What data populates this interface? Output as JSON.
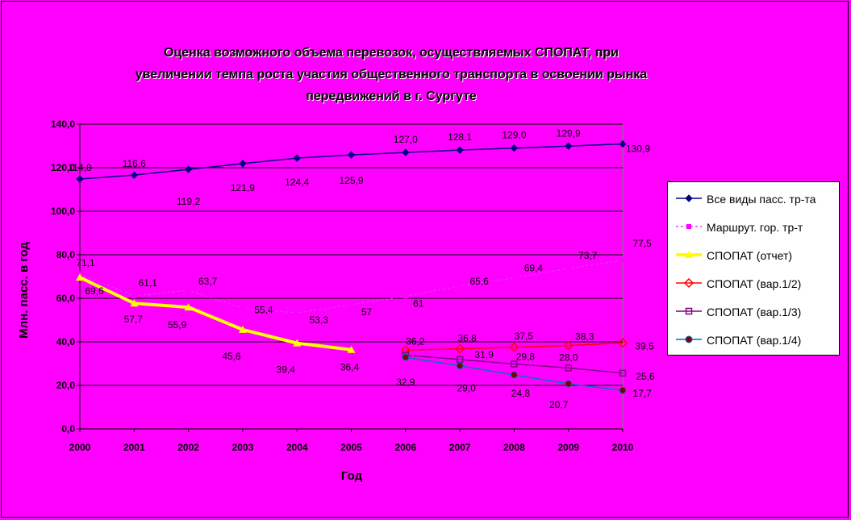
{
  "chart_data": {
    "type": "line",
    "title_lines": [
      "Оценка возможного объема перевозок, осуществляемых СПОПАТ, при",
      "увеличении темпа роста участия общественного транспорта в освоении рынка",
      "передвижений в г. Сургуте"
    ],
    "xlabel": "Год",
    "ylabel": "Млн. пасс. в год",
    "ylim": [
      0,
      140
    ],
    "ytick_labels": [
      "0,0",
      "20,0",
      "40,0",
      "60,0",
      "80,0",
      "100,0",
      "120,0",
      "140,0"
    ],
    "yticks": [
      0,
      20,
      40,
      60,
      80,
      100,
      120,
      140
    ],
    "categories": [
      "2000",
      "2001",
      "2002",
      "2003",
      "2004",
      "2005",
      "2006",
      "2007",
      "2008",
      "2009",
      "2010"
    ],
    "grid": "horizontal",
    "legend_position": "right",
    "series": [
      {
        "name": "Все виды пасс. тр-та",
        "color": "#000080",
        "marker": "diamond",
        "values": [
          114.8,
          116.6,
          119.2,
          121.9,
          124.4,
          125.9,
          127.0,
          128.1,
          129.0,
          129.9,
          130.9
        ],
        "labels": [
          "114,8",
          "116,6",
          "119,2",
          "121,9",
          "124,4",
          "125,9",
          "127,0",
          "128,1",
          "129,0",
          "129,9",
          "130,9"
        ]
      },
      {
        "name": "Маршрут. гор. тр-т",
        "color": "#ff00ff",
        "marker": "square",
        "values": [
          71.1,
          61.1,
          63.7,
          55.4,
          53.3,
          57,
          61,
          65.6,
          69.4,
          73.7,
          77.5
        ],
        "labels": [
          "71,1",
          "61,1",
          "63,7",
          "55,4",
          "53,3",
          "57",
          "61",
          "65,6",
          "69,4",
          "73,7",
          "77,5"
        ]
      },
      {
        "name": "СПОПАТ (отчет)",
        "color": "#ffff00",
        "marker": "triangle",
        "values": [
          69.6,
          57.7,
          55.9,
          45.6,
          39.4,
          36.4,
          null,
          null,
          null,
          null,
          null
        ],
        "labels": [
          "69,6",
          "57,7",
          "55,9",
          "45,6",
          "39,4",
          "36,4",
          "",
          "",
          "",
          "",
          ""
        ]
      },
      {
        "name": "СПОПАТ (вар.1/2)",
        "color": "#ff0000",
        "marker": "diamond-open",
        "values": [
          null,
          null,
          null,
          null,
          null,
          null,
          36.2,
          36.8,
          37.5,
          38.3,
          39.5
        ],
        "labels": [
          "",
          "",
          "",
          "",
          "",
          "",
          "36,2",
          "36,8",
          "37,5",
          "38,3",
          "39,5"
        ]
      },
      {
        "name": "СПОПАТ (вар.1/3)",
        "color": "#800080",
        "marker": "square-open",
        "values": [
          null,
          null,
          null,
          null,
          null,
          null,
          33.9,
          31.9,
          29.8,
          28.0,
          25.6
        ],
        "labels": [
          "",
          "",
          "",
          "",
          "",
          "",
          "",
          "31,9",
          "29,8",
          "28,0",
          "25,6"
        ]
      },
      {
        "name": "СПОПАТ (вар.1/4)",
        "color": "#0070c0",
        "marker": "circle",
        "values": [
          null,
          null,
          null,
          null,
          null,
          null,
          32.9,
          29.0,
          24.8,
          20.7,
          17.7
        ],
        "labels": [
          "",
          "",
          "",
          "",
          "",
          "",
          "32,9",
          "29,0",
          "24,8",
          "20,7",
          "17,7"
        ]
      }
    ]
  }
}
